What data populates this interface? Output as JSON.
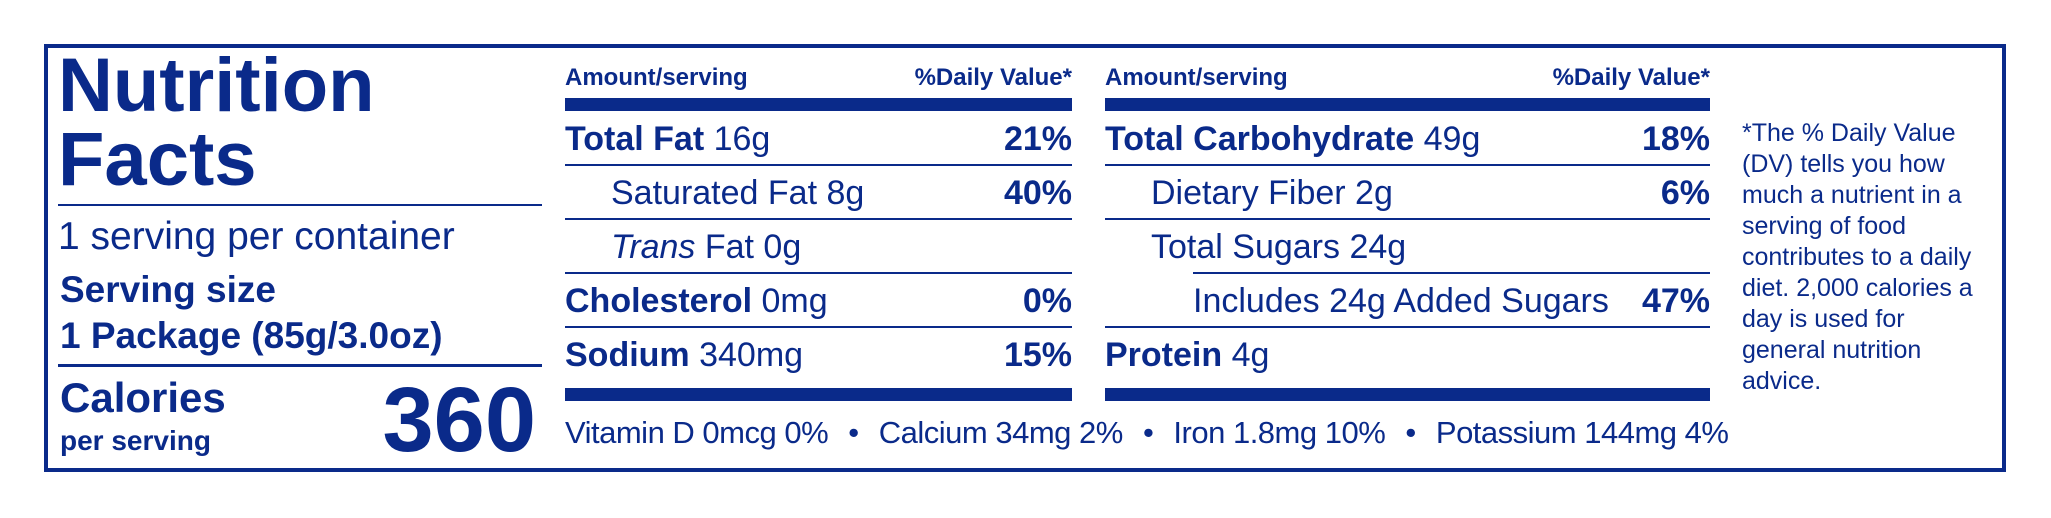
{
  "left": {
    "title_line1": "Nutrition",
    "title_line2": "Facts",
    "servings": "1 serving per container",
    "serving_size_label": "Serving size",
    "serving_size_value": "1 Package (85g/3.0oz)",
    "calories_label": "Calories",
    "calories_sub": "per serving",
    "calories_value": "360"
  },
  "col1": {
    "header_left": "Amount/serving",
    "header_right": "%Daily Value*",
    "rows": [
      {
        "name": "Total Fat",
        "amount": " 16g",
        "dv": "21%"
      },
      {
        "name": "Saturated Fat 8g",
        "amount": "",
        "dv": "40%"
      },
      {
        "name": "Trans",
        "amount": " Fat 0g",
        "dv": ""
      },
      {
        "name": "Cholesterol",
        "amount": " 0mg",
        "dv": "0%"
      },
      {
        "name": "Sodium",
        "amount": " 340mg",
        "dv": "15%"
      }
    ]
  },
  "col2": {
    "header_left": "Amount/serving",
    "header_right": "%Daily Value*",
    "rows": [
      {
        "name": "Total Carbohydrate",
        "amount": " 49g",
        "dv": "18%"
      },
      {
        "name": "Dietary Fiber 2g",
        "amount": "",
        "dv": "6%"
      },
      {
        "name": "Total Sugars 24g",
        "amount": "",
        "dv": ""
      },
      {
        "name": "Includes 24g Added Sugars",
        "amount": "",
        "dv": "47%"
      },
      {
        "name": "Protein",
        "amount": " 4g",
        "dv": ""
      }
    ]
  },
  "footnote": "*The % Daily Value (DV) tells you how much a nutrient in a serving of food contributes to a daily diet. 2,000 calories a day is used for general nutrition advice.",
  "vitamins": {
    "vitamin_d": "Vitamin D 0mcg 0%",
    "calcium": "Calcium 34mg 2%",
    "iron": "Iron 1.8mg 10%",
    "potassium": "Potassium 144mg 4%",
    "separator": "•"
  },
  "colors": {
    "ink": "#0a2a8a",
    "background": "#ffffff"
  }
}
